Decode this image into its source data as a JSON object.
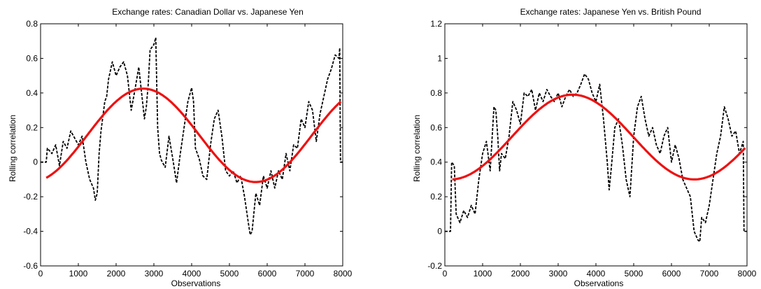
{
  "chart_data": [
    {
      "type": "line",
      "title": "Exchange rates: Canadian Dollar vs. Japanese Yen",
      "xlabel": "Observations",
      "ylabel": "Rolling correlation",
      "xlim": [
        0,
        8000
      ],
      "ylim": [
        -0.6,
        0.8
      ],
      "xticks": [
        0,
        1000,
        2000,
        3000,
        4000,
        5000,
        6000,
        7000,
        8000
      ],
      "yticks": [
        -0.6,
        -0.4,
        -0.2,
        0,
        0.2,
        0.4,
        0.6,
        0.8
      ],
      "ytick_labels": [
        "-0.6",
        "-0.4",
        "-0.2",
        "0",
        "0.2",
        "0.4",
        "0.6",
        "0.8"
      ],
      "grid": false,
      "series": [
        {
          "style": "dashed",
          "color": "#000000",
          "x": [
            0,
            150,
            180,
            300,
            400,
            500,
            600,
            700,
            800,
            900,
            1000,
            1100,
            1200,
            1300,
            1400,
            1450,
            1500,
            1550,
            1600,
            1700,
            1750,
            1800,
            1900,
            2000,
            2100,
            2200,
            2300,
            2400,
            2500,
            2600,
            2700,
            2750,
            2800,
            2850,
            2900,
            3000,
            3050,
            3100,
            3150,
            3200,
            3300,
            3400,
            3500,
            3600,
            3700,
            3800,
            3900,
            4000,
            4050,
            4100,
            4200,
            4300,
            4400,
            4500,
            4600,
            4700,
            4800,
            4900,
            5000,
            5100,
            5200,
            5300,
            5400,
            5500,
            5550,
            5600,
            5700,
            5800,
            5900,
            6000,
            6100,
            6200,
            6300,
            6400,
            6500,
            6600,
            6700,
            6800,
            6900,
            7000,
            7100,
            7200,
            7300,
            7400,
            7500,
            7600,
            7700,
            7800,
            7900,
            7920,
            7940,
            8000
          ],
          "values": [
            0,
            0,
            0.08,
            0.05,
            0.1,
            -0.02,
            0.12,
            0.08,
            0.18,
            0.14,
            0.1,
            0.15,
            0,
            -0.1,
            -0.15,
            -0.22,
            -0.18,
            0.05,
            0.18,
            0.35,
            0.38,
            0.48,
            0.58,
            0.5,
            0.55,
            0.58,
            0.5,
            0.3,
            0.42,
            0.55,
            0.35,
            0.25,
            0.32,
            0.45,
            0.65,
            0.68,
            0.72,
            0.2,
            0.05,
            0.01,
            -0.03,
            0.15,
            0.02,
            -0.12,
            0.05,
            0.2,
            0.35,
            0.43,
            0.35,
            0.08,
            0.02,
            -0.08,
            -0.1,
            0.1,
            0.25,
            0.3,
            0.15,
            -0.05,
            -0.08,
            -0.05,
            -0.12,
            -0.08,
            -0.2,
            -0.35,
            -0.42,
            -0.4,
            -0.18,
            -0.25,
            -0.08,
            -0.15,
            -0.05,
            -0.15,
            -0.05,
            -0.1,
            0.05,
            -0.05,
            0.1,
            0.08,
            0.25,
            0.2,
            0.35,
            0.3,
            0.12,
            0.28,
            0.38,
            0.48,
            0.54,
            0.62,
            0.6,
            0.66,
            0,
            0
          ]
        },
        {
          "style": "solid",
          "color": "#ee1111",
          "function": "sinusoid",
          "x_start": 150,
          "x_end": 7950,
          "center": 0.155,
          "amplitude": 0.27,
          "period": 5950,
          "peak_x": 2720
        }
      ]
    },
    {
      "type": "line",
      "title": "Exchange rates: Japanese Yen vs. British Pound",
      "xlabel": "Observations",
      "ylabel": "Rolling correlation",
      "xlim": [
        0,
        8000
      ],
      "ylim": [
        -0.2,
        1.2
      ],
      "xticks": [
        0,
        1000,
        2000,
        3000,
        4000,
        5000,
        6000,
        7000,
        8000
      ],
      "yticks": [
        -0.2,
        0,
        0.2,
        0.4,
        0.6,
        0.8,
        1,
        1.2
      ],
      "ytick_labels": [
        "-0.2",
        "0",
        "0.2",
        "0.4",
        "0.6",
        "0.8",
        "1",
        "1.2"
      ],
      "grid": false,
      "series": [
        {
          "style": "dashed",
          "color": "#000000",
          "x": [
            0,
            150,
            180,
            250,
            300,
            400,
            500,
            600,
            700,
            800,
            900,
            1000,
            1100,
            1200,
            1300,
            1350,
            1400,
            1450,
            1500,
            1600,
            1700,
            1800,
            1900,
            2000,
            2100,
            2200,
            2300,
            2400,
            2500,
            2600,
            2700,
            2800,
            2900,
            3000,
            3100,
            3200,
            3300,
            3400,
            3500,
            3600,
            3700,
            3800,
            3900,
            4000,
            4100,
            4200,
            4300,
            4350,
            4400,
            4500,
            4600,
            4700,
            4800,
            4900,
            5000,
            5100,
            5200,
            5300,
            5400,
            5500,
            5600,
            5700,
            5800,
            5900,
            6000,
            6100,
            6200,
            6300,
            6400,
            6500,
            6600,
            6700,
            6750,
            6800,
            6900,
            7000,
            7100,
            7200,
            7300,
            7400,
            7500,
            7600,
            7700,
            7800,
            7900,
            7920,
            7940,
            8000
          ],
          "values": [
            0,
            0,
            0.4,
            0.38,
            0.1,
            0.05,
            0.12,
            0.08,
            0.15,
            0.1,
            0.3,
            0.45,
            0.52,
            0.35,
            0.72,
            0.7,
            0.55,
            0.35,
            0.45,
            0.42,
            0.55,
            0.75,
            0.7,
            0.62,
            0.8,
            0.78,
            0.82,
            0.7,
            0.8,
            0.75,
            0.82,
            0.78,
            0.75,
            0.8,
            0.72,
            0.78,
            0.82,
            0.78,
            0.8,
            0.85,
            0.91,
            0.88,
            0.8,
            0.75,
            0.85,
            0.65,
            0.4,
            0.24,
            0.35,
            0.6,
            0.65,
            0.5,
            0.3,
            0.2,
            0.55,
            0.72,
            0.78,
            0.65,
            0.55,
            0.6,
            0.5,
            0.45,
            0.55,
            0.6,
            0.4,
            0.5,
            0.42,
            0.3,
            0.25,
            0.2,
            0.0,
            -0.05,
            -0.06,
            0.08,
            0.05,
            0.15,
            0.3,
            0.45,
            0.55,
            0.72,
            0.65,
            0.55,
            0.58,
            0.45,
            0.52,
            0,
            0,
            0
          ]
        },
        {
          "style": "solid",
          "color": "#ee1111",
          "function": "sinusoid",
          "x_start": 200,
          "x_end": 7950,
          "center": 0.545,
          "amplitude": 0.245,
          "period": 6450,
          "peak_x": 3380
        }
      ]
    }
  ]
}
